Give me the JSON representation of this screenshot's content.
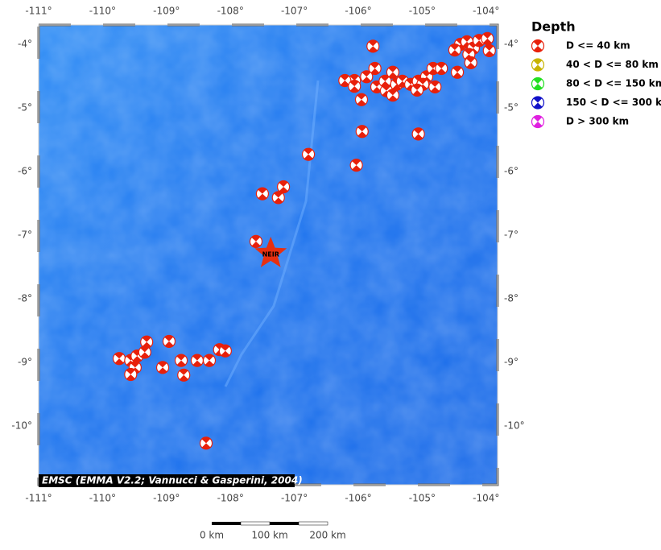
{
  "map": {
    "lon_ticks": [
      {
        "value": -111,
        "label": "-111°"
      },
      {
        "value": -110,
        "label": "-110°"
      },
      {
        "value": -109,
        "label": "-109°"
      },
      {
        "value": -108,
        "label": "-108°"
      },
      {
        "value": -107,
        "label": "-107°"
      },
      {
        "value": -106,
        "label": "-106°"
      },
      {
        "value": -105,
        "label": "-105°"
      },
      {
        "value": -104,
        "label": "-104°"
      }
    ],
    "lat_ticks": [
      {
        "value": -4,
        "label": "-4°"
      },
      {
        "value": -5,
        "label": "-5°"
      },
      {
        "value": -6,
        "label": "-6°"
      },
      {
        "value": -7,
        "label": "-7°"
      },
      {
        "value": -8,
        "label": "-8°"
      },
      {
        "value": -9,
        "label": "-9°"
      },
      {
        "value": -10,
        "label": "-10°"
      }
    ],
    "station": {
      "label": "NEIR",
      "lon": -107.37,
      "lat": -7.29
    },
    "credit": "EMSC (EMMA V2.2; Vannucci & Gasperini, 2004)",
    "events": [
      {
        "lon": -105.77,
        "lat": -4.03
      },
      {
        "lon": -105.74,
        "lat": -4.38
      },
      {
        "lon": -105.87,
        "lat": -4.51
      },
      {
        "lon": -106.06,
        "lat": -4.57
      },
      {
        "lon": -106.21,
        "lat": -4.57
      },
      {
        "lon": -106.06,
        "lat": -4.66
      },
      {
        "lon": -105.95,
        "lat": -4.87
      },
      {
        "lon": -105.71,
        "lat": -4.67
      },
      {
        "lon": -105.58,
        "lat": -4.58
      },
      {
        "lon": -105.46,
        "lat": -4.44
      },
      {
        "lon": -105.4,
        "lat": -4.63
      },
      {
        "lon": -105.56,
        "lat": -4.73
      },
      {
        "lon": -105.46,
        "lat": -4.8
      },
      {
        "lon": -105.31,
        "lat": -4.58
      },
      {
        "lon": -105.18,
        "lat": -4.63
      },
      {
        "lon": -105.06,
        "lat": -4.58
      },
      {
        "lon": -104.93,
        "lat": -4.51
      },
      {
        "lon": -104.83,
        "lat": -4.38
      },
      {
        "lon": -104.7,
        "lat": -4.38
      },
      {
        "lon": -104.8,
        "lat": -4.67
      },
      {
        "lon": -104.99,
        "lat": -4.63
      },
      {
        "lon": -105.08,
        "lat": -4.72
      },
      {
        "lon": -104.45,
        "lat": -4.44
      },
      {
        "lon": -104.4,
        "lat": -4.0
      },
      {
        "lon": -104.3,
        "lat": -3.96
      },
      {
        "lon": -104.2,
        "lat": -4.06
      },
      {
        "lon": -104.11,
        "lat": -3.94
      },
      {
        "lon": -103.98,
        "lat": -3.91
      },
      {
        "lon": -103.95,
        "lat": -4.1
      },
      {
        "lon": -104.27,
        "lat": -4.16
      },
      {
        "lon": -104.49,
        "lat": -4.09
      },
      {
        "lon": -104.24,
        "lat": -4.29
      },
      {
        "lon": -105.94,
        "lat": -5.37
      },
      {
        "lon": -105.06,
        "lat": -5.41
      },
      {
        "lon": -106.03,
        "lat": -5.9
      },
      {
        "lon": -106.78,
        "lat": -5.73
      },
      {
        "lon": -107.17,
        "lat": -6.24
      },
      {
        "lon": -107.5,
        "lat": -6.35
      },
      {
        "lon": -107.25,
        "lat": -6.41
      },
      {
        "lon": -107.6,
        "lat": -7.1
      },
      {
        "lon": -109.31,
        "lat": -8.68
      },
      {
        "lon": -108.96,
        "lat": -8.67
      },
      {
        "lon": -109.74,
        "lat": -8.94
      },
      {
        "lon": -109.56,
        "lat": -8.97
      },
      {
        "lon": -109.46,
        "lat": -8.9
      },
      {
        "lon": -109.34,
        "lat": -8.84
      },
      {
        "lon": -109.49,
        "lat": -9.08
      },
      {
        "lon": -109.56,
        "lat": -9.19
      },
      {
        "lon": -109.06,
        "lat": -9.08
      },
      {
        "lon": -108.77,
        "lat": -8.97
      },
      {
        "lon": -108.73,
        "lat": -9.2
      },
      {
        "lon": -108.52,
        "lat": -8.97
      },
      {
        "lon": -108.33,
        "lat": -8.97
      },
      {
        "lon": -108.17,
        "lat": -8.8
      },
      {
        "lon": -108.08,
        "lat": -8.82
      },
      {
        "lon": -108.38,
        "lat": -10.27
      }
    ]
  },
  "legend": {
    "title": "Depth",
    "items": [
      {
        "label": "D <= 40 km",
        "color": "#e8200a"
      },
      {
        "label": "40 < D <= 80 km",
        "color": "#c8b400"
      },
      {
        "label": "80 < D <= 150 km",
        "color": "#22e020"
      },
      {
        "label": "150 < D <= 300 km",
        "color": "#1010c8"
      },
      {
        "label": "D > 300 km",
        "color": "#e020e0"
      }
    ]
  },
  "scale_bar": {
    "labels": [
      "0 km",
      "100 km",
      "200 km"
    ]
  }
}
